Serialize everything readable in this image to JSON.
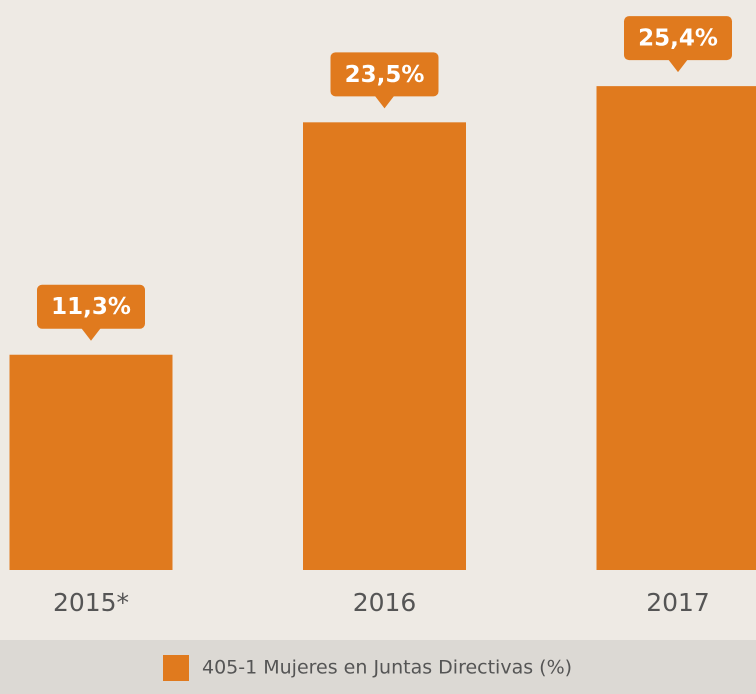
{
  "chart_data": {
    "type": "bar",
    "categories": [
      "2015*",
      "2016",
      "2017"
    ],
    "series": [
      {
        "name": "405-1 Mujeres en Juntas Directivas (%)",
        "color": "#e07a1e",
        "values": [
          11.3,
          23.5,
          25.4
        ],
        "value_labels": [
          "11,3%",
          "23,5%",
          "25,4%"
        ]
      }
    ]
  }
}
